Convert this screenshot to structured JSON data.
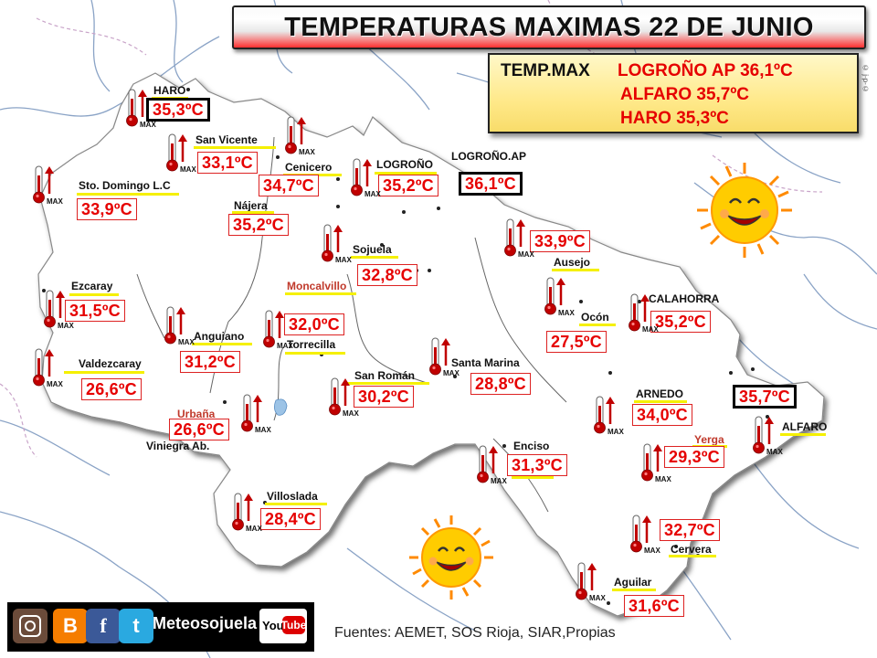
{
  "title": "TEMPERATURAS MAXIMAS 22 DE JUNIO",
  "maxbox": {
    "prefix": "TEMP.MAX",
    "line1": "LOGROÑO AP 36,1ºC",
    "line2": "ALFARO 35,7ºC",
    "line3": "HARO 35,3ºC"
  },
  "thermometer_label": "MAX",
  "stations": [
    {
      "id": "haro",
      "name": "HARO",
      "temp": "35,3ºC",
      "highlight": true
    },
    {
      "id": "san-vicente",
      "name": "San Vicente",
      "temp": "33,1ºC"
    },
    {
      "id": "cenicero",
      "name": "Cenicero",
      "temp": "34,7ºC"
    },
    {
      "id": "logrono",
      "name": "LOGROÑO",
      "temp": "35,2ºC"
    },
    {
      "id": "logrono-ap",
      "name": "LOGROÑO.AP",
      "temp": "36,1ºC",
      "highlight": true
    },
    {
      "id": "sto-domingo",
      "name": "Sto. Domingo L.C",
      "temp": "33,9ºC"
    },
    {
      "id": "najera",
      "name": "Nájera",
      "temp": "35,2ºC"
    },
    {
      "id": "sojuela",
      "name": "Sojuela",
      "temp": "32,8ºC"
    },
    {
      "id": "ausejo",
      "name": "Ausejo",
      "temp": "33,9ºC"
    },
    {
      "id": "moncalvillo",
      "name": "Moncalvillo",
      "temp": "32,0ºC"
    },
    {
      "id": "torrecilla",
      "name": "Torrecilla",
      "temp": ""
    },
    {
      "id": "ezcaray",
      "name": "Ezcaray",
      "temp": "31,5ºC"
    },
    {
      "id": "anguiano",
      "name": "Anguiano",
      "temp": "31,2ºC"
    },
    {
      "id": "calahorra",
      "name": "CALAHORRA",
      "temp": "35,2ºC"
    },
    {
      "id": "ocon",
      "name": "Ocón",
      "temp": "27,5ºC"
    },
    {
      "id": "valdezcaray",
      "name": "Valdezcaray",
      "temp": "26,6ºC"
    },
    {
      "id": "santa-marina",
      "name": "Santa Marina",
      "temp": "28,8ºC"
    },
    {
      "id": "san-roman",
      "name": "San Román",
      "temp": "30,2ºC"
    },
    {
      "id": "arnedo",
      "name": "ARNEDO",
      "temp": "34,0ºC"
    },
    {
      "id": "alfaro",
      "name": "ALFARO",
      "temp": "35,7ºC",
      "highlight": true
    },
    {
      "id": "urbana",
      "name": "Urbaña",
      "temp": "26,6ºC"
    },
    {
      "id": "viniegra",
      "name": "Viniegra Ab.",
      "temp": ""
    },
    {
      "id": "enciso",
      "name": "Enciso",
      "temp": "31,3ºC"
    },
    {
      "id": "yerga",
      "name": "Yerga",
      "temp": "29,3ºC"
    },
    {
      "id": "villoslada",
      "name": "Villoslada",
      "temp": "28,4ºC"
    },
    {
      "id": "cervera",
      "name": "Cervera",
      "temp": "32,7ºC"
    },
    {
      "id": "aguilar",
      "name": "Aguilar",
      "temp": "31,6ºC"
    }
  ],
  "social": {
    "brand": "Meteosojuela",
    "instagram_icon": "instagram-icon",
    "blogger_icon": "blogger-icon",
    "facebook_icon": "facebook-icon",
    "twitter_icon": "twitter-icon",
    "youtube_label_1": "You",
    "youtube_label_2": "Tube"
  },
  "source": "Fuentes: AEMET, SOS Rioja, SIAR,Propias",
  "copyright": "© j-p-©",
  "colors": {
    "temp_text": "#e60000",
    "temp_border": "#dd2222",
    "underline": "#f5f000",
    "title_gradient_end": "#ff3030",
    "box_bg": "#ffe98a",
    "sun": "#ffcc00"
  }
}
